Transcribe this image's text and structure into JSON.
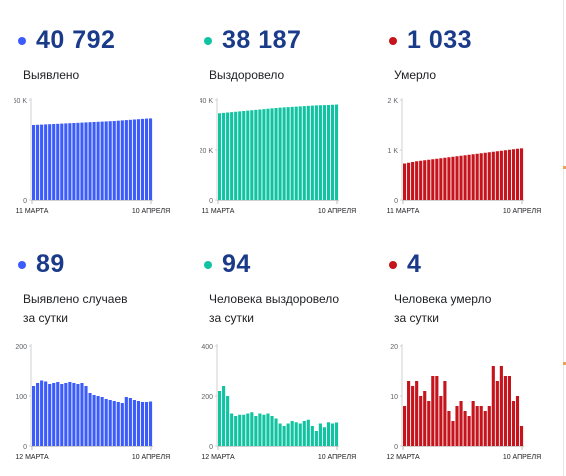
{
  "panels": [
    {
      "id": "cases-total",
      "value": "40 792",
      "label": "Выявлено",
      "color": "#3b5bfb",
      "yticks": [
        "50 K",
        "0"
      ],
      "ymax": 50000,
      "xlabels": [
        "11 МАРТА",
        "10 АПРЕЛЯ"
      ]
    },
    {
      "id": "recovered-total",
      "value": "38 187",
      "label": "Выздоровело",
      "color": "#11c4a1",
      "yticks": [
        "40 K",
        "20 K",
        "0"
      ],
      "ymax": 40000,
      "xlabels": [
        "11 МАРТА",
        "10 АПРЕЛЯ"
      ]
    },
    {
      "id": "deaths-total",
      "value": "1 033",
      "label": "Умерло",
      "color": "#c5141b",
      "yticks": [
        "2 K",
        "1 K",
        "0"
      ],
      "ymax": 2000,
      "xlabels": [
        "11 МАРТА",
        "10 АПРЕЛЯ"
      ]
    },
    {
      "id": "cases-daily",
      "value": "89",
      "label": "Выявлено случаев\nза сутки",
      "color": "#3b5bfb",
      "yticks": [
        "200",
        "100",
        "0"
      ],
      "ymax": 200,
      "xlabels": [
        "12 МАРТА",
        "10 АПРЕЛЯ"
      ]
    },
    {
      "id": "recovered-daily",
      "value": "94",
      "label": "Человека выздоровело\nза сутки",
      "color": "#11c4a1",
      "yticks": [
        "400",
        "200",
        "0"
      ],
      "ymax": 400,
      "xlabels": [
        "12 МАРТА",
        "10 АПРЕЛЯ"
      ]
    },
    {
      "id": "deaths-daily",
      "value": "4",
      "label": "Человека умерло\nза сутки",
      "color": "#c5141b",
      "yticks": [
        "20",
        "10",
        "0"
      ],
      "ymax": 20,
      "xlabels": [
        "12 МАРТА",
        "10 АПРЕЛЯ"
      ]
    }
  ],
  "chart_data": [
    {
      "type": "bar",
      "title": "Выявлено",
      "x_range": [
        "11 МАРТА",
        "10 АПРЕЛЯ"
      ],
      "ylim": [
        0,
        50000
      ],
      "values": [
        37500,
        37600,
        37700,
        37800,
        37900,
        38000,
        38100,
        38200,
        38300,
        38400,
        38500,
        38600,
        38700,
        38800,
        38900,
        39000,
        39100,
        39200,
        39300,
        39400,
        39500,
        39650,
        39800,
        39950,
        40100,
        40250,
        40400,
        40550,
        40700,
        40792
      ]
    },
    {
      "type": "bar",
      "title": "Выздоровело",
      "x_range": [
        "11 МАРТА",
        "10 АПРЕЛЯ"
      ],
      "ylim": [
        0,
        40000
      ],
      "values": [
        34700,
        34850,
        35000,
        35150,
        35300,
        35450,
        35600,
        35750,
        35900,
        36050,
        36200,
        36350,
        36500,
        36650,
        36800,
        36950,
        37050,
        37150,
        37250,
        37350,
        37450,
        37550,
        37650,
        37750,
        37850,
        37900,
        37950,
        38000,
        38100,
        38187
      ]
    },
    {
      "type": "bar",
      "title": "Умерло",
      "x_range": [
        "11 МАРТА",
        "10 АПРЕЛЯ"
      ],
      "ylim": [
        0,
        2000
      ],
      "values": [
        730,
        745,
        760,
        775,
        785,
        795,
        805,
        815,
        825,
        835,
        845,
        855,
        865,
        875,
        885,
        895,
        905,
        915,
        925,
        935,
        945,
        955,
        965,
        975,
        985,
        995,
        1005,
        1015,
        1025,
        1033
      ]
    },
    {
      "type": "bar",
      "title": "Выявлено случаев за сутки",
      "x_range": [
        "12 МАРТА",
        "10 АПРЕЛЯ"
      ],
      "ylim": [
        0,
        200
      ],
      "values": [
        120,
        126,
        131,
        129,
        124,
        126,
        128,
        124,
        126,
        128,
        126,
        124,
        126,
        120,
        106,
        102,
        100,
        98,
        94,
        92,
        90,
        88,
        86,
        98,
        96,
        92,
        90,
        88,
        88,
        89
      ]
    },
    {
      "type": "bar",
      "title": "Человека выздоровело за сутки",
      "x_range": [
        "12 МАРТА",
        "10 АПРЕЛЯ"
      ],
      "ylim": [
        0,
        400
      ],
      "values": [
        220,
        240,
        200,
        130,
        120,
        125,
        125,
        130,
        135,
        120,
        130,
        125,
        130,
        120,
        110,
        90,
        80,
        90,
        100,
        95,
        90,
        100,
        105,
        80,
        60,
        90,
        75,
        95,
        90,
        94
      ]
    },
    {
      "type": "bar",
      "title": "Человека умерло за сутки",
      "x_range": [
        "12 МАРТА",
        "10 АПРЕЛЯ"
      ],
      "ylim": [
        0,
        20
      ],
      "values": [
        8,
        13,
        12,
        13,
        10,
        11,
        9,
        14,
        14,
        10,
        13,
        7,
        5,
        8,
        9,
        7,
        6,
        9,
        8,
        8,
        7,
        8,
        16,
        13,
        16,
        14,
        14,
        9,
        10,
        4
      ]
    }
  ]
}
